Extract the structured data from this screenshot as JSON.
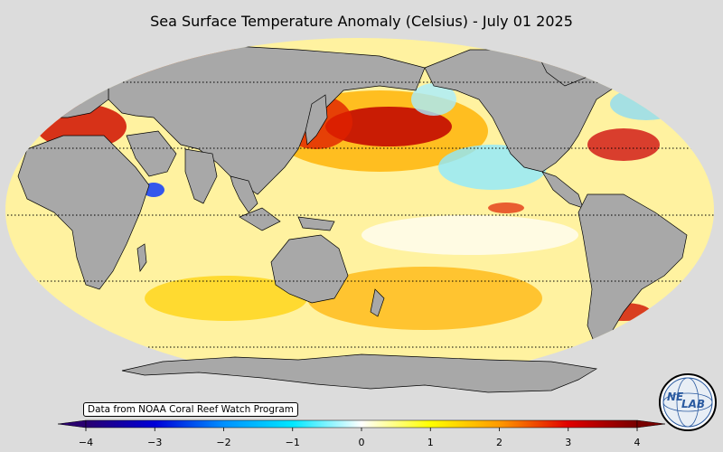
{
  "title": "Sea Surface Temperature Anomaly (Celsius) - July 01 2025",
  "credit": "Data from NOAA Coral Reef Watch Program",
  "logo": {
    "text_a": "NE",
    "text_b": "LAB"
  },
  "colorbar": {
    "ticks": [
      "−4",
      "−3",
      "−2",
      "−1",
      "0",
      "1",
      "2",
      "3",
      "4"
    ],
    "min": -4,
    "max": 4,
    "colors": [
      "#2a0070",
      "#0000d8",
      "#0090ff",
      "#00e8ff",
      "#ffffff",
      "#ffff00",
      "#ff9a00",
      "#e00000",
      "#780000"
    ]
  },
  "colors": {
    "background": "#dcdcdc",
    "land": "#a8a8a8",
    "ocean_base": "#fff2a0"
  }
}
